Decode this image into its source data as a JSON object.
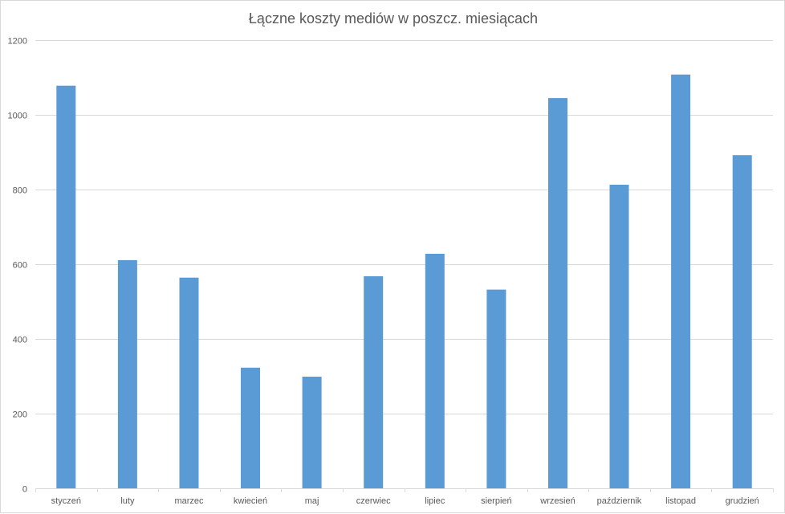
{
  "chart_data": {
    "type": "bar",
    "title": "Łączne koszty mediów w poszcz. miesiącach",
    "xlabel": "",
    "ylabel": "",
    "categories": [
      "styczeń",
      "luty",
      "marzec",
      "kwiecień",
      "maj",
      "czerwiec",
      "lipiec",
      "sierpień",
      "wrzesień",
      "październik",
      "listopad",
      "grudzień"
    ],
    "values": [
      1078,
      611,
      564,
      323,
      299,
      568,
      628,
      532,
      1045,
      813,
      1108,
      892
    ],
    "ylim": [
      0,
      1200
    ],
    "yticks": [
      0,
      200,
      400,
      600,
      800,
      1000,
      1200
    ],
    "grid": true,
    "legend": "none",
    "colors": {
      "bar": "#5b9bd5",
      "grid": "#d9d9d9",
      "text": "#595959"
    }
  }
}
